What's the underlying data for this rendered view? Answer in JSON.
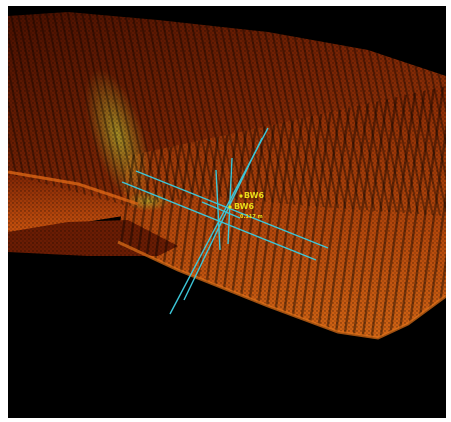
{
  "viewer": {
    "background_color": "#000000",
    "point_cloud_colors": [
      "#3a0c00",
      "#6a1a02",
      "#a23a05",
      "#d0560e",
      "#e27a1c",
      "#9ea82a"
    ],
    "overlay_line_color": "#3cc6d8",
    "label_color": "#e8dd18",
    "markers": [
      {
        "label": "BW6"
      },
      {
        "label": "BW6"
      }
    ],
    "measurement": {
      "value": "0.117 m"
    }
  }
}
